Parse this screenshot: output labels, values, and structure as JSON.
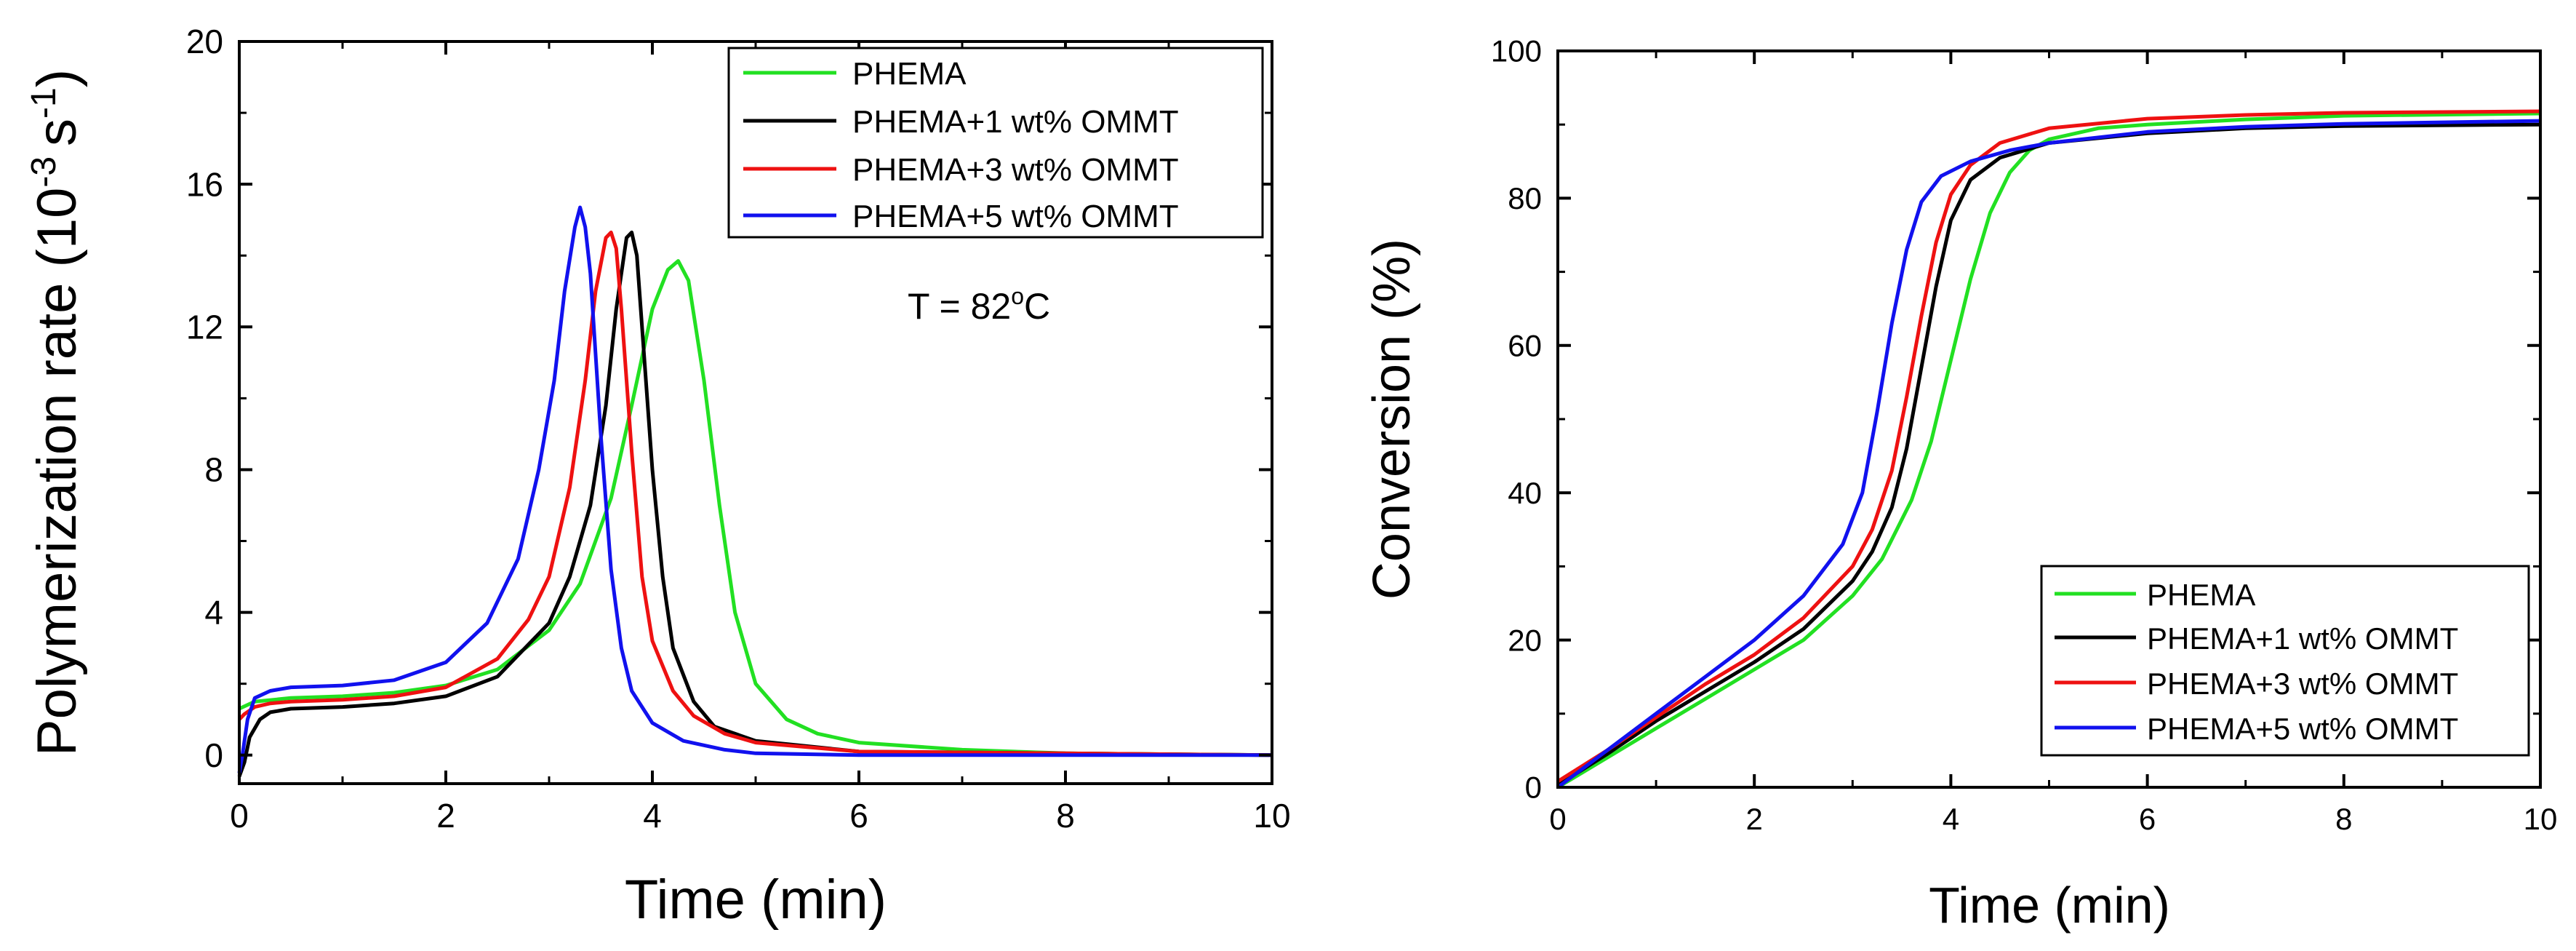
{
  "chart_data": [
    {
      "type": "line",
      "xlabel": "Time (min)",
      "ylabel": "Polymerization rate (10",
      "ylabel_exponent": "-3",
      "ylabel_unit": "s",
      "ylabel_unit_exponent": "-1",
      "ylabel_close": ")",
      "xlim": [
        0,
        10
      ],
      "ylim": [
        -0.8,
        20
      ],
      "xticks": [
        0,
        2,
        4,
        6,
        8,
        10
      ],
      "yticks": [
        0,
        4,
        8,
        12,
        16,
        20
      ],
      "annotation": {
        "text": "T = 82",
        "superscript": "o",
        "unit": "C"
      },
      "legend_position": "top-right",
      "series": [
        {
          "name": "PHEMA",
          "color": "#22e022",
          "x": [
            0,
            0.15,
            0.5,
            1.0,
            1.5,
            2.0,
            2.5,
            3.0,
            3.3,
            3.6,
            3.8,
            4.0,
            4.15,
            4.25,
            4.35,
            4.5,
            4.65,
            4.8,
            5.0,
            5.3,
            5.6,
            6.0,
            7.0,
            8.0,
            10.0
          ],
          "y": [
            1.3,
            1.5,
            1.6,
            1.65,
            1.75,
            1.95,
            2.4,
            3.5,
            4.8,
            7.2,
            9.8,
            12.5,
            13.6,
            13.85,
            13.3,
            10.5,
            7.0,
            4.0,
            2.0,
            1.0,
            0.6,
            0.35,
            0.15,
            0.05,
            0.0
          ]
        },
        {
          "name": "PHEMA+1 wt% OMMT",
          "color": "#000000",
          "x": [
            0,
            0.05,
            0.1,
            0.2,
            0.3,
            0.5,
            1.0,
            1.5,
            2.0,
            2.5,
            3.0,
            3.2,
            3.4,
            3.55,
            3.65,
            3.75,
            3.8,
            3.85,
            3.9,
            4.0,
            4.1,
            4.2,
            4.4,
            4.6,
            5.0,
            6.0,
            10.0
          ],
          "y": [
            -0.6,
            -0.2,
            0.5,
            1.0,
            1.2,
            1.3,
            1.35,
            1.45,
            1.65,
            2.2,
            3.7,
            5.0,
            7.0,
            9.8,
            12.5,
            14.5,
            14.65,
            14.0,
            12.0,
            8.0,
            5.0,
            3.0,
            1.5,
            0.8,
            0.4,
            0.1,
            0.0
          ]
        },
        {
          "name": "PHEMA+3 wt% OMMT",
          "color": "#ee1111",
          "x": [
            0,
            0.05,
            0.15,
            0.3,
            0.5,
            1.0,
            1.5,
            2.0,
            2.5,
            2.8,
            3.0,
            3.2,
            3.35,
            3.45,
            3.55,
            3.6,
            3.65,
            3.7,
            3.8,
            3.9,
            4.0,
            4.2,
            4.4,
            4.7,
            5.0,
            6.0,
            10.0
          ],
          "y": [
            1.0,
            1.15,
            1.35,
            1.45,
            1.5,
            1.55,
            1.65,
            1.9,
            2.7,
            3.8,
            5.0,
            7.5,
            10.5,
            13.0,
            14.5,
            14.65,
            14.2,
            12.5,
            8.5,
            5.0,
            3.2,
            1.8,
            1.1,
            0.6,
            0.35,
            0.1,
            0.0
          ]
        },
        {
          "name": "PHEMA+5 wt% OMMT",
          "color": "#1111ee",
          "x": [
            0,
            0.03,
            0.08,
            0.15,
            0.3,
            0.5,
            1.0,
            1.5,
            2.0,
            2.4,
            2.7,
            2.9,
            3.05,
            3.15,
            3.25,
            3.3,
            3.35,
            3.4,
            3.5,
            3.6,
            3.7,
            3.8,
            4.0,
            4.3,
            4.7,
            5.0,
            6.0,
            10.0
          ],
          "y": [
            -0.5,
            0.0,
            1.0,
            1.6,
            1.8,
            1.9,
            1.95,
            2.1,
            2.6,
            3.7,
            5.5,
            8.0,
            10.5,
            13.0,
            14.8,
            15.35,
            14.8,
            13.5,
            9.0,
            5.2,
            3.0,
            1.8,
            0.9,
            0.4,
            0.15,
            0.05,
            0.0,
            0.0
          ]
        }
      ]
    },
    {
      "type": "line",
      "xlabel": "Time (min)",
      "ylabel": "Conversion (%)",
      "xlim": [
        0,
        10
      ],
      "ylim": [
        0,
        100
      ],
      "xticks": [
        0,
        2,
        4,
        6,
        8,
        10
      ],
      "yticks": [
        0,
        20,
        40,
        60,
        80,
        100
      ],
      "legend_position": "bottom-right",
      "series": [
        {
          "name": "PHEMA",
          "color": "#22e022",
          "x": [
            0,
            0.5,
            1.0,
            1.5,
            2.0,
            2.5,
            3.0,
            3.3,
            3.6,
            3.8,
            4.0,
            4.2,
            4.4,
            4.6,
            4.8,
            5.0,
            5.5,
            6.0,
            7.0,
            8.0,
            10.0
          ],
          "y": [
            0,
            4,
            8,
            12,
            16,
            20,
            26,
            31,
            39,
            47,
            58,
            69,
            78,
            83.5,
            86.5,
            88,
            89.5,
            90,
            90.7,
            91.2,
            91.5
          ]
        },
        {
          "name": "PHEMA+1 wt% OMMT",
          "color": "#000000",
          "x": [
            0,
            0.5,
            1.0,
            1.5,
            2.0,
            2.5,
            3.0,
            3.2,
            3.4,
            3.55,
            3.7,
            3.85,
            4.0,
            4.2,
            4.5,
            5.0,
            6.0,
            7.0,
            8.0,
            10.0
          ],
          "y": [
            0.3,
            4.5,
            9,
            13,
            17,
            21.5,
            28,
            32,
            38,
            46,
            57,
            68,
            77,
            82.5,
            85.5,
            87.5,
            88.8,
            89.5,
            89.8,
            90.0
          ]
        },
        {
          "name": "PHEMA+3 wt% OMMT",
          "color": "#ee1111",
          "x": [
            0,
            0.5,
            1.0,
            1.5,
            2.0,
            2.5,
            3.0,
            3.2,
            3.4,
            3.55,
            3.7,
            3.85,
            4.0,
            4.2,
            4.5,
            5.0,
            6.0,
            7.0,
            8.0,
            10.0
          ],
          "y": [
            0.8,
            5,
            9.5,
            14,
            18,
            23,
            30,
            35,
            43,
            53,
            64,
            74,
            80.5,
            84.5,
            87.5,
            89.5,
            90.8,
            91.3,
            91.6,
            91.8
          ]
        },
        {
          "name": "PHEMA+5 wt% OMMT",
          "color": "#1111ee",
          "x": [
            0,
            0.5,
            1.0,
            1.5,
            2.0,
            2.5,
            2.9,
            3.1,
            3.25,
            3.4,
            3.55,
            3.7,
            3.9,
            4.2,
            4.6,
            5.0,
            6.0,
            7.0,
            8.0,
            10.0
          ],
          "y": [
            0,
            5,
            10,
            15,
            20,
            26,
            33,
            40,
            51,
            63,
            73,
            79.5,
            83,
            85,
            86.5,
            87.5,
            89,
            89.7,
            90.1,
            90.5
          ]
        }
      ]
    }
  ]
}
